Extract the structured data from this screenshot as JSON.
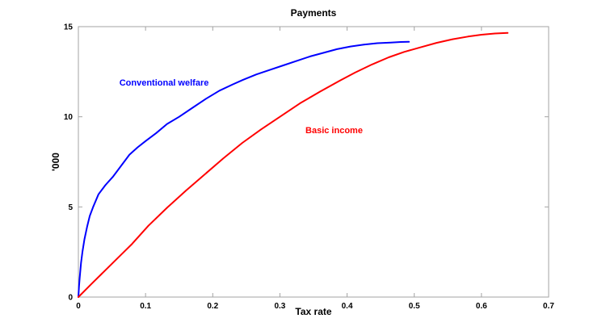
{
  "figure": {
    "background": "#ffffff"
  },
  "chart_data": {
    "type": "line",
    "title": "Payments",
    "xlabel": "Tax rate",
    "ylabel": "'000",
    "xlim": [
      0,
      0.7
    ],
    "ylim": [
      0,
      15
    ],
    "xticks": [
      0,
      0.1,
      0.2,
      0.3,
      0.4,
      0.5,
      0.6,
      0.7
    ],
    "xtick_labels": [
      "0",
      "0.1",
      "0.2",
      "0.3",
      "0.4",
      "0.5",
      "0.6",
      "0.7"
    ],
    "yticks": [
      0,
      5,
      10,
      15
    ],
    "ytick_labels": [
      "0",
      "5",
      "10",
      "15"
    ],
    "grid": false,
    "box": true,
    "legend": "inline-text-labels",
    "axis_color": "#a3a3a3",
    "text_color": "#000000",
    "series": [
      {
        "name": "Conventional welfare",
        "color": "#0000ff",
        "points": [
          [
            0.0,
            0.0
          ],
          [
            0.001,
            0.6
          ],
          [
            0.002,
            1.1
          ],
          [
            0.004,
            1.9
          ],
          [
            0.006,
            2.5
          ],
          [
            0.009,
            3.2
          ],
          [
            0.013,
            3.9
          ],
          [
            0.017,
            4.5
          ],
          [
            0.022,
            5.0
          ],
          [
            0.03,
            5.7
          ],
          [
            0.04,
            6.2
          ],
          [
            0.052,
            6.7
          ],
          [
            0.064,
            7.3
          ],
          [
            0.076,
            7.9
          ],
          [
            0.088,
            8.3
          ],
          [
            0.1,
            8.65
          ],
          [
            0.116,
            9.1
          ],
          [
            0.132,
            9.6
          ],
          [
            0.15,
            10.0
          ],
          [
            0.17,
            10.5
          ],
          [
            0.19,
            11.0
          ],
          [
            0.21,
            11.45
          ],
          [
            0.23,
            11.8
          ],
          [
            0.245,
            12.05
          ],
          [
            0.265,
            12.35
          ],
          [
            0.285,
            12.6
          ],
          [
            0.305,
            12.85
          ],
          [
            0.325,
            13.1
          ],
          [
            0.345,
            13.35
          ],
          [
            0.365,
            13.55
          ],
          [
            0.385,
            13.75
          ],
          [
            0.405,
            13.9
          ],
          [
            0.425,
            14.0
          ],
          [
            0.445,
            14.08
          ],
          [
            0.465,
            14.12
          ],
          [
            0.48,
            14.15
          ],
          [
            0.492,
            14.16
          ]
        ]
      },
      {
        "name": "Basic income",
        "color": "#ff0000",
        "points": [
          [
            0.0,
            0.0
          ],
          [
            0.02,
            0.75
          ],
          [
            0.035,
            1.3
          ],
          [
            0.05,
            1.85
          ],
          [
            0.065,
            2.4
          ],
          [
            0.08,
            2.95
          ],
          [
            0.104,
            3.95
          ],
          [
            0.132,
            4.95
          ],
          [
            0.16,
            5.9
          ],
          [
            0.188,
            6.8
          ],
          [
            0.216,
            7.7
          ],
          [
            0.244,
            8.55
          ],
          [
            0.272,
            9.3
          ],
          [
            0.3,
            10.0
          ],
          [
            0.33,
            10.75
          ],
          [
            0.36,
            11.4
          ],
          [
            0.389,
            12.0
          ],
          [
            0.412,
            12.45
          ],
          [
            0.437,
            12.9
          ],
          [
            0.462,
            13.3
          ],
          [
            0.485,
            13.6
          ],
          [
            0.509,
            13.85
          ],
          [
            0.533,
            14.1
          ],
          [
            0.557,
            14.3
          ],
          [
            0.58,
            14.45
          ],
          [
            0.6,
            14.55
          ],
          [
            0.62,
            14.62
          ],
          [
            0.639,
            14.65
          ]
        ]
      }
    ],
    "annotations": [
      {
        "text": "Conventional welfare",
        "x": 0.061,
        "y": 11.9,
        "color": "#0000ff"
      },
      {
        "text": "Basic income",
        "x": 0.338,
        "y": 9.27,
        "color": "#ff0000"
      }
    ]
  }
}
